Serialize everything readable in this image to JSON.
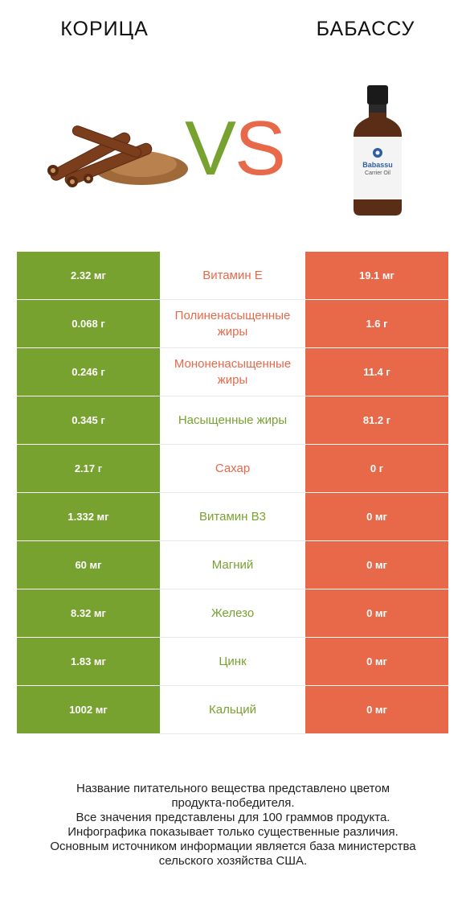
{
  "header": {
    "left_title": "КОРИЦА",
    "right_title": "БАБАССУ",
    "vs_v": "V",
    "vs_s": "S"
  },
  "bottle_label": {
    "brand": "Babassu",
    "sub": "Carrier Oil"
  },
  "colors": {
    "left_winner": "#78a22f",
    "right_winner": "#e8684a"
  },
  "chart_data": {
    "type": "table",
    "columns": [
      "КОРИЦА",
      "",
      "БАБАССУ"
    ],
    "rows": [
      {
        "nutrient": "Витамин E",
        "left": "2.32 мг",
        "right": "19.1 мг",
        "winner": "right"
      },
      {
        "nutrient": "Полиненасыщенные жиры",
        "left": "0.068 г",
        "right": "1.6 г",
        "winner": "right"
      },
      {
        "nutrient": "Мононенасыщенные жиры",
        "left": "0.246 г",
        "right": "11.4 г",
        "winner": "right"
      },
      {
        "nutrient": "Насыщенные жиры",
        "left": "0.345 г",
        "right": "81.2 г",
        "winner": "left"
      },
      {
        "nutrient": "Сахар",
        "left": "2.17 г",
        "right": "0 г",
        "winner": "right"
      },
      {
        "nutrient": "Витамин B3",
        "left": "1.332 мг",
        "right": "0 мг",
        "winner": "left"
      },
      {
        "nutrient": "Магний",
        "left": "60 мг",
        "right": "0 мг",
        "winner": "left"
      },
      {
        "nutrient": "Железо",
        "left": "8.32 мг",
        "right": "0 мг",
        "winner": "left"
      },
      {
        "nutrient": "Цинк",
        "left": "1.83 мг",
        "right": "0 мг",
        "winner": "left"
      },
      {
        "nutrient": "Кальций",
        "left": "1002 мг",
        "right": "0 мг",
        "winner": "left"
      }
    ]
  },
  "footer": {
    "lines": [
      "Название питательного вещества представлено цветом",
      "продукта-победителя.",
      "Все значения представлены для 100 граммов продукта.",
      "Инфографика показывает только существенные различия.",
      "Основным источником информации является база министерства",
      "сельского хозяйства США."
    ]
  }
}
